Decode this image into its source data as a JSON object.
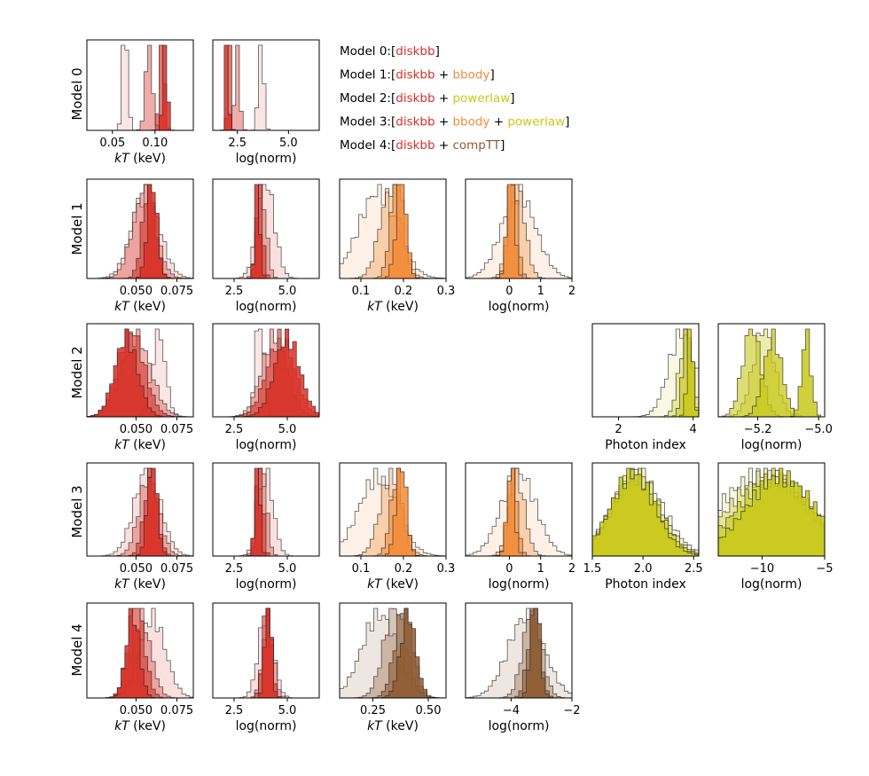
{
  "colors": {
    "diskbb": "#d73027",
    "bbody": "#f28c3a",
    "powerlaw": "#c8c81a",
    "compTT": "#8c5a32"
  },
  "legend": [
    {
      "label": "Model 0:",
      "components": [
        {
          "name": "diskbb",
          "color": "#d73027"
        }
      ]
    },
    {
      "label": "Model 1:",
      "components": [
        {
          "name": "diskbb",
          "color": "#d73027"
        },
        {
          "name": "bbody",
          "color": "#f28c3a"
        }
      ]
    },
    {
      "label": "Model 2:",
      "components": [
        {
          "name": "diskbb",
          "color": "#d73027"
        },
        {
          "name": "powerlaw",
          "color": "#c8c81a"
        }
      ]
    },
    {
      "label": "Model 3:",
      "components": [
        {
          "name": "diskbb",
          "color": "#d73027"
        },
        {
          "name": "bbody",
          "color": "#f28c3a"
        },
        {
          "name": "powerlaw",
          "color": "#c8c81a"
        }
      ]
    },
    {
      "label": "Model 4:",
      "components": [
        {
          "name": "diskbb",
          "color": "#d73027"
        },
        {
          "name": "compTT",
          "color": "#8c5a32"
        }
      ]
    }
  ],
  "chart_data": {
    "type": "histogram-grid",
    "rows": [
      "Model 0",
      "Model 1",
      "Model 2",
      "Model 3",
      "Model 4"
    ],
    "columns": 6,
    "panels": [
      {
        "row": 0,
        "col": 0,
        "xlabel_italic": "kT",
        "xlabel_rest": " (keV)",
        "xlim": [
          0.02,
          0.145
        ],
        "ticks": [
          0.05,
          0.1
        ],
        "tick_labels": [
          "0.05",
          "0.10"
        ],
        "color": "#d73027",
        "series": [
          {
            "mu": 0.065,
            "sigma": 0.003,
            "alpha": 0.12
          },
          {
            "mu": 0.093,
            "sigma": 0.004,
            "alpha": 0.4
          },
          {
            "mu": 0.108,
            "sigma": 0.003,
            "alpha": 0.65
          },
          {
            "mu": 0.112,
            "sigma": 0.0025,
            "alpha": 0.85
          }
        ]
      },
      {
        "row": 0,
        "col": 1,
        "xlabel_italic": "",
        "xlabel_rest": "log(norm)",
        "xlim": [
          1.3,
          6.5
        ],
        "ticks": [
          2.5,
          5.0
        ],
        "tick_labels": [
          "2.5",
          "5.0"
        ],
        "color": "#d73027",
        "series": [
          {
            "mu": 3.65,
            "sigma": 0.12,
            "alpha": 0.12
          },
          {
            "mu": 2.5,
            "sigma": 0.12,
            "alpha": 0.4
          },
          {
            "mu": 2.1,
            "sigma": 0.07,
            "alpha": 0.65
          },
          {
            "mu": 2.0,
            "sigma": 0.07,
            "alpha": 0.85
          }
        ]
      },
      {
        "row": 1,
        "col": 0,
        "xlabel_italic": "kT",
        "xlabel_rest": " (keV)",
        "xlim": [
          0.02,
          0.085
        ],
        "ticks": [
          0.05,
          0.075
        ],
        "tick_labels": [
          "0.050",
          "0.075"
        ],
        "color": "#d73027",
        "series": [
          {
            "mu": 0.056,
            "sigma": 0.0085,
            "alpha": 0.15
          },
          {
            "mu": 0.055,
            "sigma": 0.007,
            "alpha": 0.35
          },
          {
            "mu": 0.058,
            "sigma": 0.004,
            "alpha": 0.6
          },
          {
            "mu": 0.06,
            "sigma": 0.003,
            "alpha": 0.85
          }
        ]
      },
      {
        "row": 1,
        "col": 1,
        "xlabel_italic": "",
        "xlabel_rest": "log(norm)",
        "xlim": [
          1.5,
          6.5
        ],
        "ticks": [
          2.5,
          5.0
        ],
        "tick_labels": [
          "2.5",
          "5.0"
        ],
        "color": "#d73027",
        "series": [
          {
            "mu": 4.0,
            "sigma": 0.4,
            "alpha": 0.15
          },
          {
            "mu": 3.8,
            "sigma": 0.22,
            "alpha": 0.35
          },
          {
            "mu": 3.7,
            "sigma": 0.15,
            "alpha": 0.6
          },
          {
            "mu": 3.6,
            "sigma": 0.12,
            "alpha": 0.85
          }
        ]
      },
      {
        "row": 1,
        "col": 2,
        "xlabel_italic": "kT",
        "xlabel_rest": " (keV)",
        "xlim": [
          0.05,
          0.3
        ],
        "ticks": [
          0.1,
          0.2,
          0.3
        ],
        "tick_labels": [
          "0.1",
          "0.2",
          "0.3"
        ],
        "color": "#f28c3a",
        "series": [
          {
            "mu": 0.14,
            "sigma": 0.045,
            "alpha": 0.12
          },
          {
            "mu": 0.17,
            "sigma": 0.025,
            "alpha": 0.35
          },
          {
            "mu": 0.185,
            "sigma": 0.015,
            "alpha": 0.6
          },
          {
            "mu": 0.195,
            "sigma": 0.012,
            "alpha": 0.85
          }
        ]
      },
      {
        "row": 1,
        "col": 3,
        "xlabel_italic": "",
        "xlabel_rest": "log(norm)",
        "xlim": [
          -1.4,
          2.0
        ],
        "ticks": [
          0,
          1,
          2
        ],
        "tick_labels": [
          "0",
          "1",
          "2"
        ],
        "color": "#f28c3a",
        "series": [
          {
            "mu": 0.3,
            "sigma": 0.55,
            "alpha": 0.12
          },
          {
            "mu": 0.25,
            "sigma": 0.25,
            "alpha": 0.35
          },
          {
            "mu": 0.1,
            "sigma": 0.15,
            "alpha": 0.6
          },
          {
            "mu": 0.05,
            "sigma": 0.12,
            "alpha": 0.85
          }
        ]
      },
      {
        "row": 2,
        "col": 0,
        "xlabel_italic": "kT",
        "xlabel_rest": " (keV)",
        "xlim": [
          0.02,
          0.085
        ],
        "ticks": [
          0.05,
          0.075
        ],
        "tick_labels": [
          "0.050",
          "0.075"
        ],
        "color": "#d73027",
        "series": [
          {
            "mu": 0.064,
            "sigma": 0.004,
            "alpha": 0.12
          },
          {
            "mu": 0.05,
            "sigma": 0.009,
            "alpha": 0.35
          },
          {
            "mu": 0.047,
            "sigma": 0.008,
            "alpha": 0.6
          },
          {
            "mu": 0.044,
            "sigma": 0.007,
            "alpha": 0.85
          }
        ]
      },
      {
        "row": 2,
        "col": 1,
        "xlabel_italic": "",
        "xlabel_rest": "log(norm)",
        "xlim": [
          1.5,
          6.5
        ],
        "ticks": [
          2.5,
          5.0
        ],
        "tick_labels": [
          "2.5",
          "5.0"
        ],
        "color": "#d73027",
        "series": [
          {
            "mu": 3.7,
            "sigma": 0.2,
            "alpha": 0.12
          },
          {
            "mu": 4.4,
            "sigma": 0.6,
            "alpha": 0.35
          },
          {
            "mu": 4.7,
            "sigma": 0.65,
            "alpha": 0.6
          },
          {
            "mu": 5.0,
            "sigma": 0.6,
            "alpha": 0.85
          }
        ]
      },
      {
        "row": 2,
        "col": 4,
        "xlabel_italic": "",
        "xlabel_rest": "Photon index",
        "xlim": [
          1.3,
          4.15
        ],
        "ticks": [
          2,
          4
        ],
        "tick_labels": [
          "2",
          "4"
        ],
        "color": "#c8c81a",
        "series": [
          {
            "mu": 3.7,
            "sigma": 0.35,
            "alpha": 0.12
          },
          {
            "mu": 3.8,
            "sigma": 0.18,
            "alpha": 0.35
          },
          {
            "mu": 3.85,
            "sigma": 0.12,
            "alpha": 0.6
          },
          {
            "mu": 3.92,
            "sigma": 0.08,
            "alpha": 0.85
          }
        ]
      },
      {
        "row": 2,
        "col": 5,
        "xlabel_italic": "",
        "xlabel_rest": "log(norm)",
        "xlim": [
          -5.33,
          -4.98
        ],
        "ticks": [
          -5.2,
          -5.0
        ],
        "tick_labels": [
          "−5.2",
          "−5.0"
        ],
        "color": "#c8c81a",
        "series": [
          {
            "mu": -5.18,
            "sigma": 0.035,
            "alpha": 0.35
          },
          {
            "mu": -5.22,
            "sigma": 0.03,
            "alpha": 0.6
          },
          {
            "mu": -5.15,
            "sigma": 0.03,
            "alpha": 0.75
          },
          {
            "mu": -5.04,
            "sigma": 0.015,
            "alpha": 0.85
          }
        ]
      },
      {
        "row": 3,
        "col": 0,
        "xlabel_italic": "kT",
        "xlabel_rest": " (keV)",
        "xlim": [
          0.02,
          0.085
        ],
        "ticks": [
          0.05,
          0.075
        ],
        "tick_labels": [
          "0.050",
          "0.075"
        ],
        "color": "#d73027",
        "series": [
          {
            "mu": 0.057,
            "sigma": 0.008,
            "alpha": 0.15
          },
          {
            "mu": 0.058,
            "sigma": 0.006,
            "alpha": 0.35
          },
          {
            "mu": 0.059,
            "sigma": 0.004,
            "alpha": 0.6
          },
          {
            "mu": 0.06,
            "sigma": 0.003,
            "alpha": 0.85
          }
        ]
      },
      {
        "row": 3,
        "col": 1,
        "xlabel_italic": "",
        "xlabel_rest": "log(norm)",
        "xlim": [
          1.5,
          6.5
        ],
        "ticks": [
          2.5,
          5.0
        ],
        "tick_labels": [
          "2.5",
          "5.0"
        ],
        "color": "#d73027",
        "series": [
          {
            "mu": 4.0,
            "sigma": 0.35,
            "alpha": 0.15
          },
          {
            "mu": 3.8,
            "sigma": 0.22,
            "alpha": 0.35
          },
          {
            "mu": 3.7,
            "sigma": 0.15,
            "alpha": 0.6
          },
          {
            "mu": 3.6,
            "sigma": 0.12,
            "alpha": 0.85
          }
        ]
      },
      {
        "row": 3,
        "col": 2,
        "xlabel_italic": "kT",
        "xlabel_rest": " (keV)",
        "xlim": [
          0.05,
          0.3
        ],
        "ticks": [
          0.1,
          0.2,
          0.3
        ],
        "tick_labels": [
          "0.1",
          "0.2",
          "0.3"
        ],
        "color": "#f28c3a",
        "series": [
          {
            "mu": 0.14,
            "sigma": 0.045,
            "alpha": 0.12
          },
          {
            "mu": 0.17,
            "sigma": 0.025,
            "alpha": 0.35
          },
          {
            "mu": 0.185,
            "sigma": 0.015,
            "alpha": 0.6
          },
          {
            "mu": 0.195,
            "sigma": 0.012,
            "alpha": 0.85
          }
        ]
      },
      {
        "row": 3,
        "col": 3,
        "xlabel_italic": "",
        "xlabel_rest": "log(norm)",
        "xlim": [
          -1.4,
          2.0
        ],
        "ticks": [
          0,
          1,
          2
        ],
        "tick_labels": [
          "0",
          "1",
          "2"
        ],
        "color": "#f28c3a",
        "series": [
          {
            "mu": 0.3,
            "sigma": 0.55,
            "alpha": 0.12
          },
          {
            "mu": 0.25,
            "sigma": 0.25,
            "alpha": 0.35
          },
          {
            "mu": 0.1,
            "sigma": 0.15,
            "alpha": 0.6
          },
          {
            "mu": 0.05,
            "sigma": 0.12,
            "alpha": 0.85
          }
        ]
      },
      {
        "row": 3,
        "col": 4,
        "xlabel_italic": "",
        "xlabel_rest": "Photon index",
        "xlim": [
          1.5,
          2.55
        ],
        "ticks": [
          1.5,
          2.0,
          2.5
        ],
        "tick_labels": [
          "1.5",
          "2.0",
          "2.5"
        ],
        "color": "#c8c81a",
        "series": [
          {
            "mu": 1.95,
            "sigma": 0.25,
            "alpha": 0.15
          },
          {
            "mu": 1.93,
            "sigma": 0.24,
            "alpha": 0.35
          },
          {
            "mu": 1.92,
            "sigma": 0.23,
            "alpha": 0.6
          },
          {
            "mu": 1.9,
            "sigma": 0.22,
            "alpha": 0.85
          }
        ]
      },
      {
        "row": 3,
        "col": 5,
        "xlabel_italic": "",
        "xlabel_rest": "log(norm)",
        "xlim": [
          -13.5,
          -5.0
        ],
        "ticks": [
          -10,
          -5
        ],
        "tick_labels": [
          "−10",
          "−5"
        ],
        "color": "#c8c81a",
        "series": [
          {
            "mu": -10.0,
            "sigma": 3.5,
            "alpha": 0.15
          },
          {
            "mu": -9.5,
            "sigma": 3.2,
            "alpha": 0.35
          },
          {
            "mu": -9.0,
            "sigma": 3.0,
            "alpha": 0.6
          },
          {
            "mu": -8.5,
            "sigma": 2.8,
            "alpha": 0.85
          }
        ]
      },
      {
        "row": 4,
        "col": 0,
        "xlabel_italic": "kT",
        "xlabel_rest": " (keV)",
        "xlim": [
          0.02,
          0.085
        ],
        "ticks": [
          0.05,
          0.075
        ],
        "tick_labels": [
          "0.050",
          "0.075"
        ],
        "color": "#d73027",
        "series": [
          {
            "mu": 0.06,
            "sigma": 0.008,
            "alpha": 0.15
          },
          {
            "mu": 0.053,
            "sigma": 0.006,
            "alpha": 0.35
          },
          {
            "mu": 0.05,
            "sigma": 0.005,
            "alpha": 0.6
          },
          {
            "mu": 0.048,
            "sigma": 0.004,
            "alpha": 0.85
          }
        ]
      },
      {
        "row": 4,
        "col": 1,
        "xlabel_italic": "",
        "xlabel_rest": "log(norm)",
        "xlim": [
          1.5,
          6.5
        ],
        "ticks": [
          2.5,
          5.0
        ],
        "tick_labels": [
          "2.5",
          "5.0"
        ],
        "color": "#d73027",
        "series": [
          {
            "mu": 4.0,
            "sigma": 0.35,
            "alpha": 0.15
          },
          {
            "mu": 4.1,
            "sigma": 0.25,
            "alpha": 0.35
          },
          {
            "mu": 4.05,
            "sigma": 0.2,
            "alpha": 0.6
          },
          {
            "mu": 4.1,
            "sigma": 0.15,
            "alpha": 0.85
          }
        ]
      },
      {
        "row": 4,
        "col": 2,
        "xlabel_italic": "kT",
        "xlabel_rest": " (keV)",
        "xlim": [
          0.1,
          0.58
        ],
        "ticks": [
          0.25,
          0.5
        ],
        "tick_labels": [
          "0.25",
          "0.50"
        ],
        "color": "#8c5a32",
        "series": [
          {
            "mu": 0.28,
            "sigma": 0.08,
            "alpha": 0.15
          },
          {
            "mu": 0.35,
            "sigma": 0.05,
            "alpha": 0.35
          },
          {
            "mu": 0.39,
            "sigma": 0.04,
            "alpha": 0.6
          },
          {
            "mu": 0.41,
            "sigma": 0.035,
            "alpha": 0.85
          }
        ]
      },
      {
        "row": 4,
        "col": 3,
        "xlabel_italic": "",
        "xlabel_rest": "log(norm)",
        "xlim": [
          -5.5,
          -2.0
        ],
        "ticks": [
          -4,
          -2
        ],
        "tick_labels": [
          "−4",
          "−2"
        ],
        "color": "#8c5a32",
        "series": [
          {
            "mu": -3.5,
            "sigma": 0.6,
            "alpha": 0.15
          },
          {
            "mu": -3.3,
            "sigma": 0.3,
            "alpha": 0.35
          },
          {
            "mu": -3.25,
            "sigma": 0.2,
            "alpha": 0.6
          },
          {
            "mu": -3.2,
            "sigma": 0.15,
            "alpha": 0.85
          }
        ]
      }
    ]
  }
}
